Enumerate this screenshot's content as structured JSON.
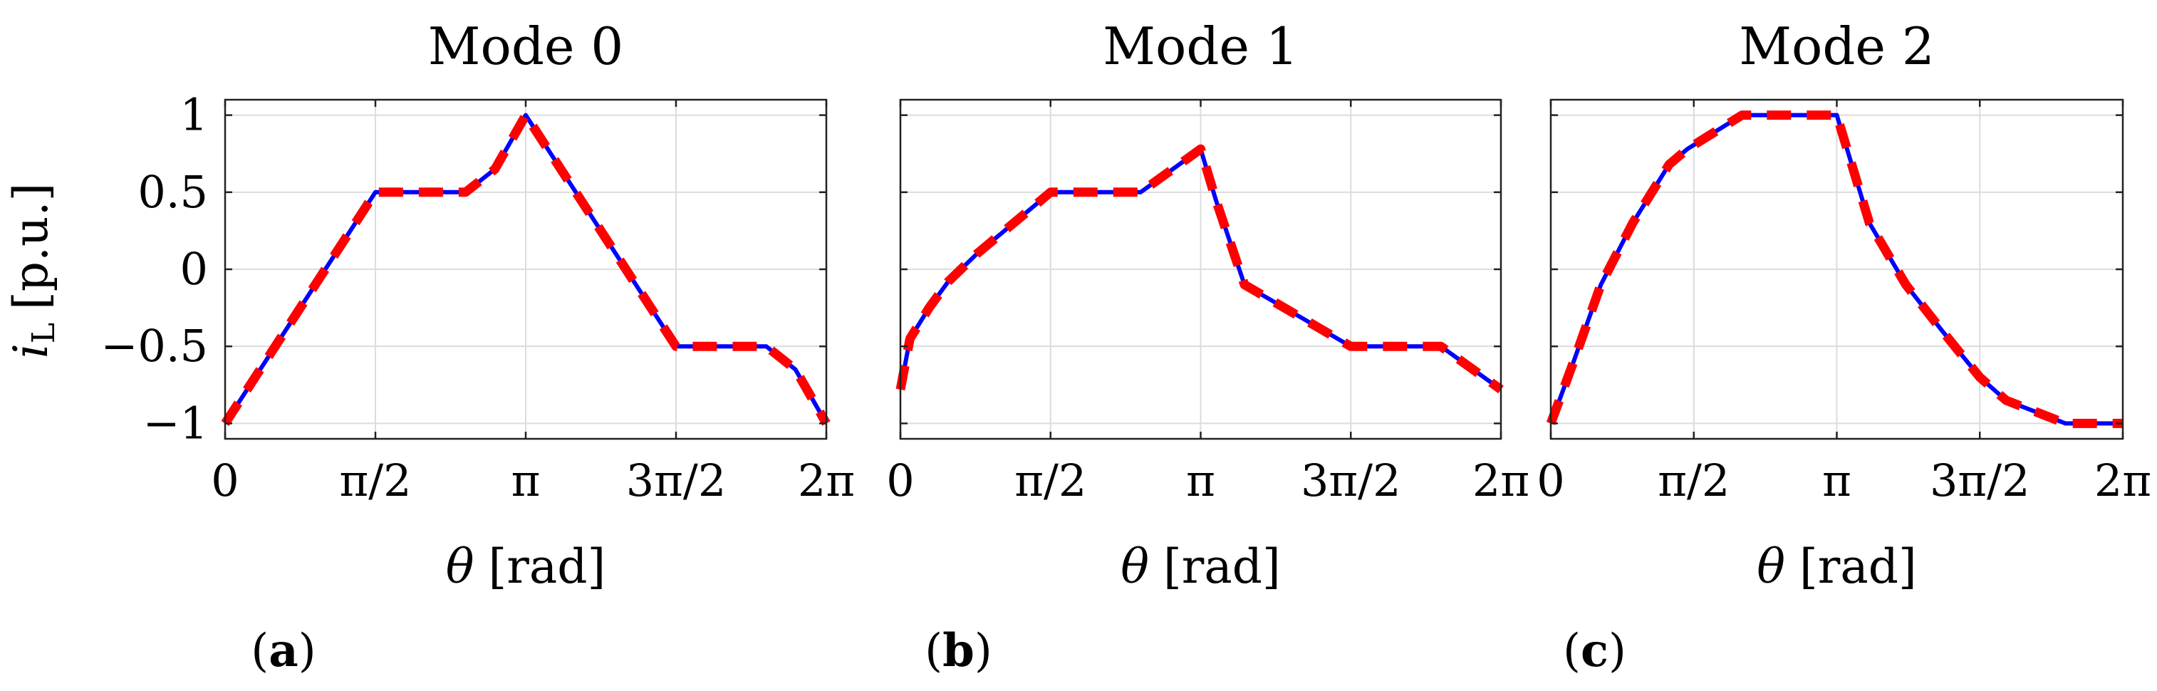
{
  "figure": {
    "ylabel": "i",
    "ylabel_sub": "L",
    "ylabel_unit": "[p.u.]",
    "xlabel_symbol": "θ",
    "xlabel_unit": "[rad]"
  },
  "chart_data": [
    {
      "type": "line",
      "title": "Mode 0",
      "panel_label": {
        "open": "(",
        "letter": "a",
        "close": ")"
      },
      "xlabel": "θ [rad]",
      "ylabel": "iL [p.u.]",
      "xlim": [
        0,
        6.2832
      ],
      "ylim": [
        -1.1,
        1.1
      ],
      "xticks": [
        0,
        1.5708,
        3.1416,
        4.7124,
        6.2832
      ],
      "xtick_labels": [
        "0",
        "π/2",
        "π",
        "3π/2",
        "2π"
      ],
      "yticks": [
        -1,
        -0.5,
        0,
        0.5,
        1
      ],
      "ytick_labels": [
        "−1",
        "−0.5",
        "0",
        "0.5",
        "1"
      ],
      "show_ytick_labels": true,
      "grid": true,
      "series": [
        {
          "color": "#0000ff",
          "style": "solid",
          "x": [
            0,
            1.571,
            2.513,
            2.82,
            3.1416,
            4.712,
            5.655,
            5.96,
            6.2832
          ],
          "y": [
            -1,
            0.5,
            0.5,
            0.65,
            1,
            -0.5,
            -0.5,
            -0.65,
            -1
          ]
        },
        {
          "color": "#ff0000",
          "style": "dashed",
          "x": [
            0,
            1.571,
            2.513,
            2.82,
            3.1416,
            4.712,
            5.655,
            5.96,
            6.2832
          ],
          "y": [
            -1,
            0.5,
            0.5,
            0.65,
            1,
            -0.5,
            -0.5,
            -0.65,
            -1
          ]
        }
      ]
    },
    {
      "type": "line",
      "title": "Mode 1",
      "panel_label": {
        "open": "(",
        "letter": "b",
        "close": ")"
      },
      "xlabel": "θ [rad]",
      "ylabel": "",
      "xlim": [
        0,
        6.2832
      ],
      "ylim": [
        -1.1,
        1.1
      ],
      "xticks": [
        0,
        1.5708,
        3.1416,
        4.7124,
        6.2832
      ],
      "xtick_labels": [
        "0",
        "π/2",
        "π",
        "3π/2",
        "2π"
      ],
      "yticks": [
        -1,
        -0.5,
        0,
        0.5,
        1
      ],
      "ytick_labels": [],
      "show_ytick_labels": false,
      "grid": true,
      "series": [
        {
          "color": "#0000ff",
          "style": "solid",
          "x": [
            0,
            0.1,
            0.3,
            0.5,
            0.8,
            1.571,
            2.513,
            3.1416,
            3.3,
            3.6,
            4.712,
            5.655,
            6.2832
          ],
          "y": [
            -0.78,
            -0.45,
            -0.25,
            -0.08,
            0.1,
            0.5,
            0.5,
            0.78,
            0.45,
            -0.1,
            -0.5,
            -0.5,
            -0.78
          ]
        },
        {
          "color": "#ff0000",
          "style": "dashed",
          "x": [
            0,
            0.1,
            0.3,
            0.5,
            0.8,
            1.571,
            2.513,
            3.1416,
            3.3,
            3.6,
            4.712,
            5.655,
            6.2832
          ],
          "y": [
            -0.78,
            -0.45,
            -0.25,
            -0.08,
            0.1,
            0.5,
            0.5,
            0.78,
            0.45,
            -0.1,
            -0.5,
            -0.5,
            -0.78
          ]
        }
      ]
    },
    {
      "type": "line",
      "title": "Mode 2",
      "panel_label": {
        "open": "(",
        "letter": "c",
        "close": ")"
      },
      "xlabel": "θ [rad]",
      "ylabel": "",
      "xlim": [
        0,
        6.2832
      ],
      "ylim": [
        -1.1,
        1.1
      ],
      "xticks": [
        0,
        1.5708,
        3.1416,
        4.7124,
        6.2832
      ],
      "xtick_labels": [
        "0",
        "π/2",
        "π",
        "3π/2",
        "2π"
      ],
      "yticks": [
        -1,
        -0.5,
        0,
        0.5,
        1
      ],
      "ytick_labels": [],
      "show_ytick_labels": false,
      "grid": true,
      "series": [
        {
          "color": "#0000ff",
          "style": "solid",
          "x": [
            0,
            0.25,
            0.55,
            0.9,
            1.3,
            1.5,
            2.1,
            3.1416,
            3.5,
            3.9,
            4.3,
            4.712,
            5.0,
            5.655,
            6.2832
          ],
          "y": [
            -1,
            -0.6,
            -0.1,
            0.3,
            0.68,
            0.78,
            1,
            1,
            0.3,
            -0.1,
            -0.4,
            -0.7,
            -0.85,
            -1,
            -1
          ]
        },
        {
          "color": "#ff0000",
          "style": "dashed",
          "x": [
            0,
            0.25,
            0.55,
            0.9,
            1.3,
            1.5,
            2.1,
            3.1416,
            3.5,
            3.9,
            4.3,
            4.712,
            5.0,
            5.655,
            6.2832
          ],
          "y": [
            -1,
            -0.6,
            -0.1,
            0.3,
            0.68,
            0.78,
            1,
            1,
            0.3,
            -0.1,
            -0.4,
            -0.7,
            -0.85,
            -1,
            -1
          ]
        }
      ]
    }
  ]
}
